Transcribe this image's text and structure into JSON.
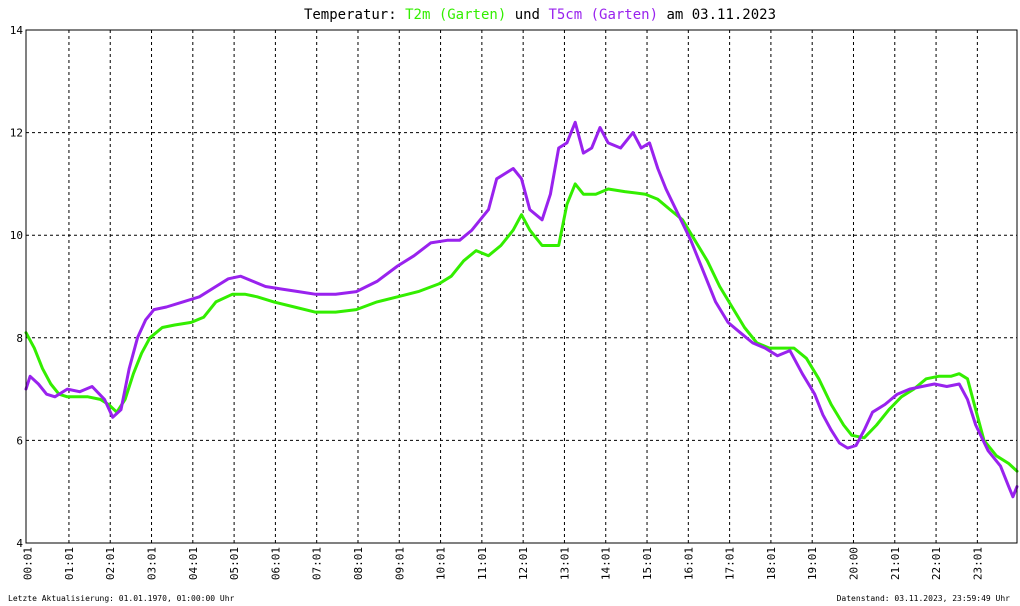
{
  "header": {
    "title_prefix": "Temperatur:",
    "series1_label": "T2m (Garten)",
    "conjunction": "und",
    "series2_label": "T5cm (Garten)",
    "date_text": "am 03.11.2023"
  },
  "footer": {
    "left": "Letzte Aktualisierung: 01.01.1970, 01:00:00 Uhr",
    "right": "Datenstand: 03.11.2023, 23:59:49 Uhr"
  },
  "colors": {
    "t2m": "#33ee00",
    "t5cm": "#9922ee",
    "grid": "#000000",
    "background": "#ffffff"
  },
  "chart_data": {
    "type": "line",
    "title": "Temperatur: T2m (Garten) und T5cm (Garten) am 03.11.2023",
    "xlabel": "",
    "ylabel": "",
    "x_unit": "hour of day",
    "xlim": [
      0,
      24
    ],
    "ylim": [
      4,
      14
    ],
    "yticks": [
      "4",
      "6",
      "8",
      "10",
      "12",
      "14"
    ],
    "xticks": [
      "00:01",
      "01:01",
      "02:01",
      "03:01",
      "04:01",
      "05:01",
      "06:01",
      "07:01",
      "08:01",
      "09:01",
      "10:01",
      "11:01",
      "12:01",
      "13:01",
      "14:01",
      "15:01",
      "16:01",
      "17:01",
      "18:01",
      "19:01",
      "20:00",
      "21:01",
      "22:01",
      "23:01"
    ],
    "grid": true,
    "series": [
      {
        "name": "T2m (Garten)",
        "color": "#33ee00",
        "points": [
          [
            0.0,
            8.1
          ],
          [
            0.2,
            7.8
          ],
          [
            0.4,
            7.4
          ],
          [
            0.6,
            7.1
          ],
          [
            0.8,
            6.9
          ],
          [
            1.0,
            6.85
          ],
          [
            1.5,
            6.85
          ],
          [
            1.8,
            6.8
          ],
          [
            2.0,
            6.7
          ],
          [
            2.2,
            6.55
          ],
          [
            2.4,
            6.8
          ],
          [
            2.6,
            7.3
          ],
          [
            2.8,
            7.7
          ],
          [
            3.0,
            8.0
          ],
          [
            3.3,
            8.2
          ],
          [
            3.6,
            8.25
          ],
          [
            4.0,
            8.3
          ],
          [
            4.3,
            8.4
          ],
          [
            4.6,
            8.7
          ],
          [
            5.0,
            8.85
          ],
          [
            5.3,
            8.85
          ],
          [
            5.6,
            8.8
          ],
          [
            6.0,
            8.7
          ],
          [
            6.5,
            8.6
          ],
          [
            7.0,
            8.5
          ],
          [
            7.5,
            8.5
          ],
          [
            8.0,
            8.55
          ],
          [
            8.5,
            8.7
          ],
          [
            9.0,
            8.8
          ],
          [
            9.5,
            8.9
          ],
          [
            10.0,
            9.05
          ],
          [
            10.3,
            9.2
          ],
          [
            10.6,
            9.5
          ],
          [
            10.9,
            9.7
          ],
          [
            11.2,
            9.6
          ],
          [
            11.5,
            9.8
          ],
          [
            11.8,
            10.1
          ],
          [
            12.0,
            10.4
          ],
          [
            12.2,
            10.1
          ],
          [
            12.5,
            9.8
          ],
          [
            12.9,
            9.8
          ],
          [
            13.1,
            10.6
          ],
          [
            13.3,
            11.0
          ],
          [
            13.5,
            10.8
          ],
          [
            13.8,
            10.8
          ],
          [
            14.1,
            10.9
          ],
          [
            14.5,
            10.85
          ],
          [
            15.0,
            10.8
          ],
          [
            15.3,
            10.7
          ],
          [
            15.6,
            10.5
          ],
          [
            15.9,
            10.3
          ],
          [
            16.2,
            9.9
          ],
          [
            16.5,
            9.5
          ],
          [
            16.8,
            9.0
          ],
          [
            17.1,
            8.6
          ],
          [
            17.4,
            8.2
          ],
          [
            17.7,
            7.9
          ],
          [
            18.0,
            7.8
          ],
          [
            18.3,
            7.8
          ],
          [
            18.6,
            7.8
          ],
          [
            18.9,
            7.6
          ],
          [
            19.2,
            7.2
          ],
          [
            19.5,
            6.7
          ],
          [
            19.8,
            6.3
          ],
          [
            20.0,
            6.1
          ],
          [
            20.3,
            6.05
          ],
          [
            20.6,
            6.3
          ],
          [
            20.9,
            6.6
          ],
          [
            21.2,
            6.85
          ],
          [
            21.5,
            7.0
          ],
          [
            21.8,
            7.2
          ],
          [
            22.1,
            7.25
          ],
          [
            22.4,
            7.25
          ],
          [
            22.6,
            7.3
          ],
          [
            22.8,
            7.2
          ],
          [
            23.0,
            6.6
          ],
          [
            23.2,
            6.0
          ],
          [
            23.5,
            5.7
          ],
          [
            23.8,
            5.55
          ],
          [
            24.0,
            5.4
          ]
        ]
      },
      {
        "name": "T5cm (Garten)",
        "color": "#9922ee",
        "points": [
          [
            0.0,
            7.0
          ],
          [
            0.1,
            7.25
          ],
          [
            0.3,
            7.1
          ],
          [
            0.5,
            6.9
          ],
          [
            0.7,
            6.85
          ],
          [
            1.0,
            7.0
          ],
          [
            1.3,
            6.95
          ],
          [
            1.6,
            7.05
          ],
          [
            1.9,
            6.8
          ],
          [
            2.1,
            6.45
          ],
          [
            2.3,
            6.6
          ],
          [
            2.5,
            7.4
          ],
          [
            2.7,
            8.0
          ],
          [
            2.9,
            8.35
          ],
          [
            3.1,
            8.55
          ],
          [
            3.4,
            8.6
          ],
          [
            3.8,
            8.7
          ],
          [
            4.2,
            8.8
          ],
          [
            4.6,
            9.0
          ],
          [
            4.9,
            9.15
          ],
          [
            5.2,
            9.2
          ],
          [
            5.5,
            9.1
          ],
          [
            5.8,
            9.0
          ],
          [
            6.2,
            8.95
          ],
          [
            6.6,
            8.9
          ],
          [
            7.0,
            8.85
          ],
          [
            7.5,
            8.85
          ],
          [
            8.0,
            8.9
          ],
          [
            8.5,
            9.1
          ],
          [
            9.0,
            9.4
          ],
          [
            9.4,
            9.6
          ],
          [
            9.8,
            9.85
          ],
          [
            10.2,
            9.9
          ],
          [
            10.5,
            9.9
          ],
          [
            10.8,
            10.1
          ],
          [
            11.0,
            10.3
          ],
          [
            11.2,
            10.5
          ],
          [
            11.4,
            11.1
          ],
          [
            11.6,
            11.2
          ],
          [
            11.8,
            11.3
          ],
          [
            12.0,
            11.1
          ],
          [
            12.2,
            10.5
          ],
          [
            12.5,
            10.3
          ],
          [
            12.7,
            10.8
          ],
          [
            12.9,
            11.7
          ],
          [
            13.1,
            11.8
          ],
          [
            13.3,
            12.2
          ],
          [
            13.5,
            11.6
          ],
          [
            13.7,
            11.7
          ],
          [
            13.9,
            12.1
          ],
          [
            14.1,
            11.8
          ],
          [
            14.4,
            11.7
          ],
          [
            14.7,
            12.0
          ],
          [
            14.9,
            11.7
          ],
          [
            15.1,
            11.8
          ],
          [
            15.3,
            11.3
          ],
          [
            15.5,
            10.9
          ],
          [
            15.8,
            10.4
          ],
          [
            16.1,
            9.9
          ],
          [
            16.4,
            9.3
          ],
          [
            16.7,
            8.7
          ],
          [
            17.0,
            8.3
          ],
          [
            17.3,
            8.1
          ],
          [
            17.6,
            7.9
          ],
          [
            17.9,
            7.8
          ],
          [
            18.2,
            7.65
          ],
          [
            18.5,
            7.75
          ],
          [
            18.8,
            7.3
          ],
          [
            19.1,
            6.9
          ],
          [
            19.3,
            6.5
          ],
          [
            19.5,
            6.2
          ],
          [
            19.7,
            5.95
          ],
          [
            19.9,
            5.85
          ],
          [
            20.1,
            5.9
          ],
          [
            20.3,
            6.2
          ],
          [
            20.5,
            6.55
          ],
          [
            20.8,
            6.7
          ],
          [
            21.1,
            6.9
          ],
          [
            21.4,
            7.0
          ],
          [
            21.7,
            7.05
          ],
          [
            22.0,
            7.1
          ],
          [
            22.3,
            7.05
          ],
          [
            22.6,
            7.1
          ],
          [
            22.8,
            6.8
          ],
          [
            23.0,
            6.3
          ],
          [
            23.3,
            5.8
          ],
          [
            23.6,
            5.5
          ],
          [
            23.8,
            5.1
          ],
          [
            23.9,
            4.9
          ],
          [
            24.0,
            5.1
          ]
        ]
      }
    ]
  }
}
